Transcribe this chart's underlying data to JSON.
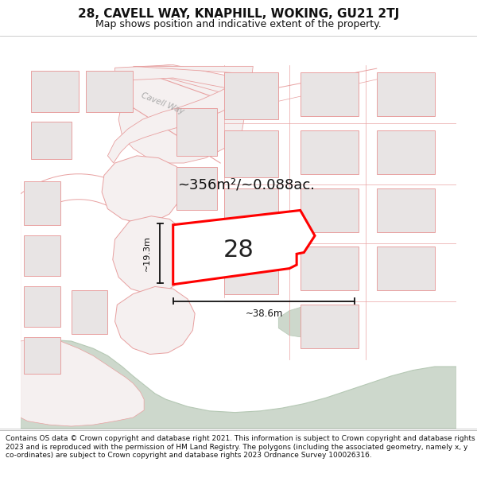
{
  "title": "28, CAVELL WAY, KNAPHILL, WOKING, GU21 2TJ",
  "subtitle": "Map shows position and indicative extent of the property.",
  "footer": "Contains OS data © Crown copyright and database right 2021. This information is subject to Crown copyright and database rights 2023 and is reproduced with the permission of HM Land Registry. The polygons (including the associated geometry, namely x, y co-ordinates) are subject to Crown copyright and database rights 2023 Ordnance Survey 100026316.",
  "area_text": "~356m²/~0.088ac.",
  "label_28": "28",
  "dim_width": "~38.6m",
  "dim_height": "~19.3m",
  "road_label": "Cavell Way",
  "bg_color": "#ffffff",
  "road_fill": "#f5f0f0",
  "building_fill": "#e8e4e4",
  "building_stroke": "#e8a0a0",
  "road_stroke": "#e8a0a0",
  "green_fill": "#cdd8cc",
  "green_stroke": "#b5c8b4",
  "property_color": "#ff0000",
  "property_fill": "#ffffff",
  "dim_color": "#111111",
  "title_fontsize": 11,
  "subtitle_fontsize": 9,
  "footer_fontsize": 6.5
}
